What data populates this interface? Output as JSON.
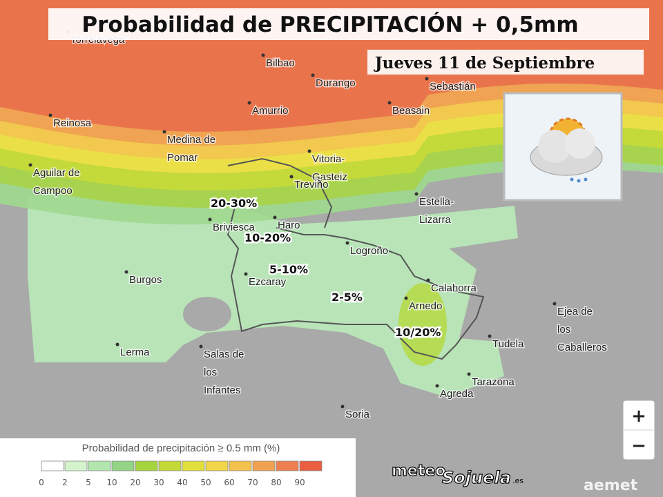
{
  "header": {
    "title": "Probabilidad de PRECIPITACIÓN + 0,5mm",
    "date": "Jueves 11 de Septiembre"
  },
  "cities": [
    [
      "Torrelavega"
    ],
    [
      "Bilbao"
    ],
    [
      "Durango"
    ],
    [
      "Sebastián"
    ],
    [
      "Amurrio"
    ],
    [
      "Beasain"
    ],
    [
      "Reinosa"
    ],
    [
      "Medina de",
      "Pomar"
    ],
    [
      "Vitoria-",
      "Gasteiz"
    ],
    [
      "Aguilar de",
      "Campoo"
    ],
    [
      "Treviño"
    ],
    [
      "Estella-",
      "Lizarra"
    ],
    [
      "Haro"
    ],
    [
      "Briviesca"
    ],
    [
      "Logroño"
    ],
    [
      "Burgos"
    ],
    [
      "Ezcaray"
    ],
    [
      "Calahorra"
    ],
    [
      "Arnedo"
    ],
    [
      "Ejea de",
      "los",
      "Caballeros"
    ],
    [
      "Tudela"
    ],
    [
      "Lerma"
    ],
    [
      "Salas de",
      "los",
      "Infantes"
    ],
    [
      "Tarazona"
    ],
    [
      "Agreda"
    ],
    [
      "Soria"
    ]
  ],
  "probability_labels": [
    "20-30%",
    "10-20%",
    "5-10%",
    "2-5%",
    "10/20%"
  ],
  "legend": {
    "title": "Probabilidad de precipitación ≥ 0.5 mm (%)",
    "ticks": [
      0,
      2,
      5,
      10,
      20,
      30,
      40,
      50,
      60,
      70,
      80,
      90
    ],
    "colors": [
      "#ffffff",
      "#d4f3cc",
      "#b3e6ae",
      "#93d486",
      "#a6d43e",
      "#c4da36",
      "#e2df3c",
      "#f1d64a",
      "#f3c24c",
      "#f0a252",
      "#ee8050",
      "#ea5e42"
    ]
  },
  "zoom": {
    "in": "+",
    "out": "−"
  },
  "branding": {
    "meteo": "meteo",
    "sojuela": "Sojuela",
    "domain": ".es",
    "aemet": "aemet"
  }
}
